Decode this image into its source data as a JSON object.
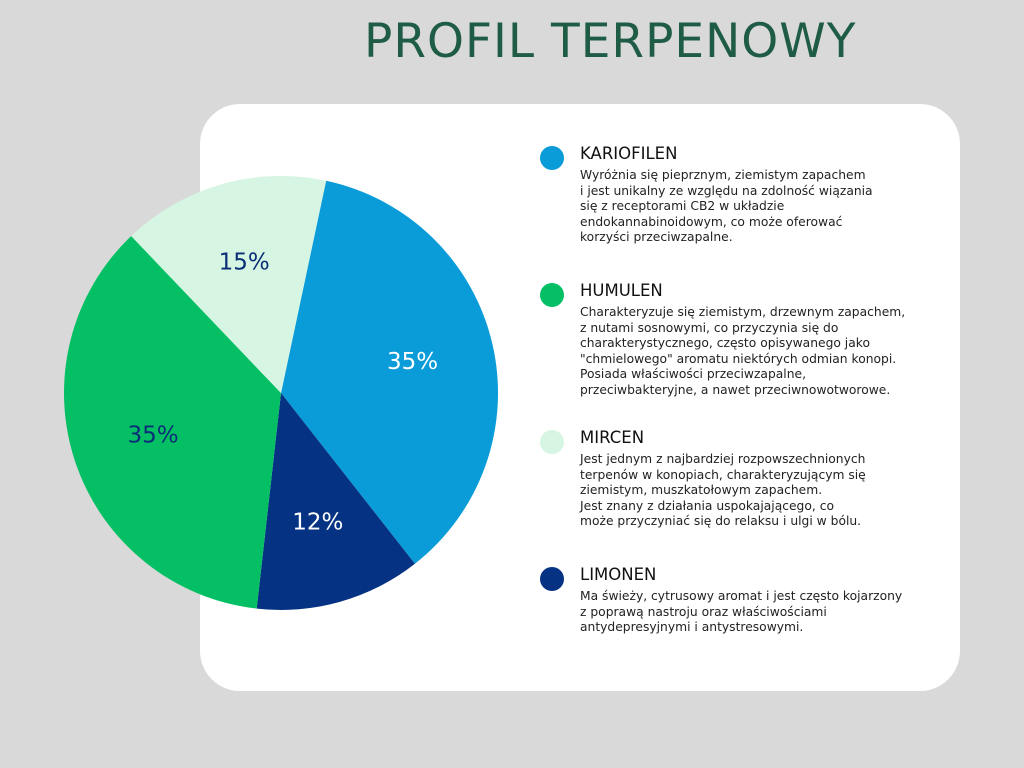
{
  "page": {
    "title": "PROFIL TERPENOWY"
  },
  "colors": {
    "page_background": "#d9d9d9",
    "card_background": "#ffffff",
    "title": "#1f5c45"
  },
  "chart_data": {
    "type": "pie",
    "title": "PROFIL TERPENOWY",
    "unit": "%",
    "slices": [
      {
        "name": "KARIOFILEN",
        "value": 35,
        "label": "35%",
        "color": "#0a9cd8",
        "label_color": "#ffffff"
      },
      {
        "name": "LIMONEN",
        "value": 12,
        "label": "12%",
        "color": "#053282",
        "label_color": "#ffffff"
      },
      {
        "name": "HUMULEN",
        "value": 35,
        "label": "35%",
        "color": "#04bf63",
        "label_color": "#0b2e78"
      },
      {
        "name": "MIRCEN",
        "value": 15,
        "label": "15%",
        "color": "#d6f5e2",
        "label_color": "#0b2e78"
      }
    ],
    "legend_position": "right",
    "grid": false
  },
  "legend": {
    "items": [
      {
        "name": "KARIOFILEN",
        "color": "#0a9cd8",
        "description_lines": [
          "Wyróżnia się pieprznym, ziemistym zapachem",
          "i jest unikalny ze względu na zdolność wiązania",
          "się z receptorami CB2 w układzie",
          "endokannabinoidowym, co może oferować",
          "korzyści przeciwzapalne."
        ]
      },
      {
        "name": "HUMULEN",
        "color": "#04bf63",
        "description_lines": [
          "Charakteryzuje się ziemistym, drzewnym zapachem,",
          "z nutami sosnowymi, co przyczynia się do",
          "charakterystycznego, często opisywanego jako",
          "\"chmielowego\" aromatu niektórych odmian konopi.",
          "Posiada właściwości przeciwzapalne,",
          "przeciwbakteryjne, a nawet przeciwnowotworowe."
        ]
      },
      {
        "name": "MIRCEN",
        "color": "#d6f5e2",
        "description_lines": [
          "Jest jednym z najbardziej rozpowszechnionych",
          "terpenów w konopiach, charakteryzującym się",
          "ziemistym, muszkatołowym zapachem.",
          "Jest znany z działania uspokajającego, co",
          "może przyczyniać się do relaksu i ulgi w bólu."
        ]
      },
      {
        "name": "LIMONEN",
        "color": "#053282",
        "description_lines": [
          "Ma świeży, cytrusowy aromat i jest często kojarzony",
          "z poprawą nastroju oraz właściwościami",
          "antydepresyjnymi i antystresowymi."
        ]
      }
    ]
  }
}
